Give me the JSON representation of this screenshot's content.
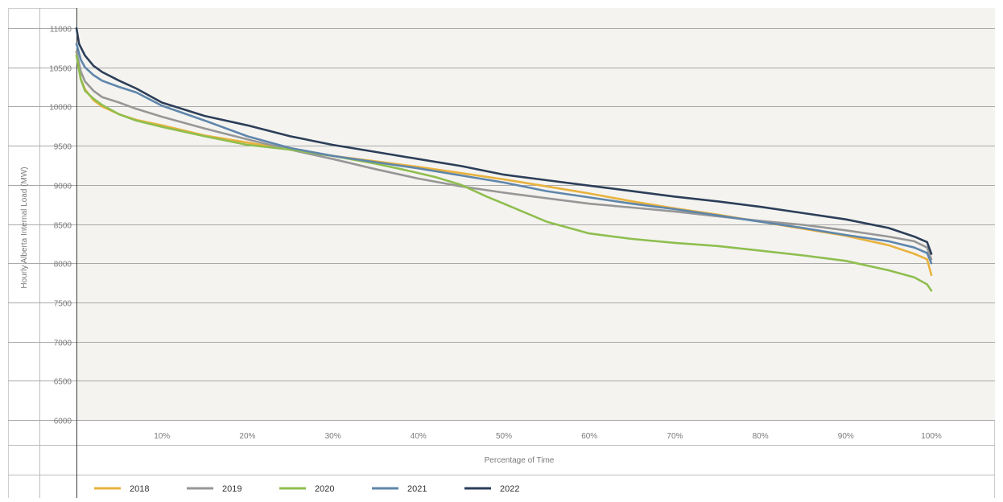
{
  "chart_data": {
    "type": "line",
    "title": "",
    "xlabel": "Percentage of Time",
    "ylabel": "Hourly Alberta Internal Load (MW)",
    "xlim": [
      0,
      100
    ],
    "ylim": [
      6000,
      11000
    ],
    "xticks": [
      10,
      20,
      30,
      40,
      50,
      60,
      70,
      80,
      90,
      100
    ],
    "xtick_labels": [
      "10%",
      "20%",
      "30%",
      "40%",
      "50%",
      "60%",
      "70%",
      "80%",
      "90%",
      "100%"
    ],
    "yticks": [
      6000,
      6500,
      7000,
      7500,
      8000,
      8500,
      9000,
      9500,
      10000,
      10500,
      11000
    ],
    "ytick_labels": [
      "6000",
      "6500",
      "7000",
      "7500",
      "8000",
      "8500",
      "9000",
      "9500",
      "10000",
      "10500",
      "11000"
    ],
    "grid": true,
    "legend_position": "bottom",
    "series": [
      {
        "name": "2018",
        "color": "#e8b23e",
        "x": [
          0,
          0.5,
          1,
          2,
          3,
          5,
          7,
          10,
          15,
          20,
          25,
          30,
          35,
          40,
          45,
          50,
          55,
          60,
          65,
          70,
          75,
          80,
          85,
          90,
          95,
          98,
          99.5,
          100
        ],
        "y": [
          10700,
          10350,
          10220,
          10080,
          10000,
          9900,
          9830,
          9760,
          9630,
          9540,
          9450,
          9370,
          9300,
          9230,
          9150,
          9070,
          8980,
          8890,
          8790,
          8700,
          8620,
          8530,
          8440,
          8350,
          8230,
          8120,
          8050,
          7850
        ]
      },
      {
        "name": "2019",
        "color": "#979797",
        "x": [
          0,
          0.5,
          1,
          2,
          3,
          5,
          7,
          10,
          15,
          20,
          25,
          30,
          35,
          40,
          45,
          50,
          55,
          60,
          65,
          70,
          75,
          80,
          85,
          90,
          95,
          98,
          99.5,
          100
        ],
        "y": [
          10700,
          10450,
          10320,
          10200,
          10120,
          10050,
          9970,
          9870,
          9720,
          9580,
          9450,
          9330,
          9200,
          9080,
          8980,
          8900,
          8830,
          8760,
          8710,
          8660,
          8600,
          8540,
          8490,
          8420,
          8340,
          8280,
          8200,
          8050
        ]
      },
      {
        "name": "2020",
        "color": "#8fbe4f",
        "x": [
          0,
          0.5,
          1,
          2,
          3,
          5,
          7,
          10,
          15,
          20,
          25,
          30,
          35,
          38,
          42,
          45,
          48,
          50,
          55,
          60,
          65,
          70,
          75,
          80,
          85,
          90,
          95,
          98,
          99.5,
          100
        ],
        "y": [
          10650,
          10350,
          10200,
          10100,
          10020,
          9900,
          9820,
          9740,
          9620,
          9510,
          9450,
          9370,
          9270,
          9200,
          9100,
          9000,
          8850,
          8760,
          8530,
          8380,
          8310,
          8260,
          8220,
          8160,
          8100,
          8030,
          7910,
          7820,
          7730,
          7650
        ]
      },
      {
        "name": "2021",
        "color": "#5f86ab",
        "x": [
          0,
          0.5,
          1,
          2,
          3,
          5,
          7,
          10,
          15,
          20,
          25,
          30,
          35,
          40,
          45,
          50,
          55,
          60,
          65,
          70,
          75,
          80,
          85,
          90,
          95,
          98,
          99.5,
          100
        ],
        "y": [
          10800,
          10600,
          10500,
          10400,
          10330,
          10250,
          10180,
          10010,
          9820,
          9620,
          9470,
          9370,
          9290,
          9210,
          9120,
          9030,
          8920,
          8840,
          8760,
          8690,
          8610,
          8530,
          8450,
          8360,
          8280,
          8200,
          8130,
          8000
        ]
      },
      {
        "name": "2022",
        "color": "#2c3e58",
        "x": [
          0,
          0.3,
          1,
          2,
          3,
          5,
          7,
          10,
          15,
          20,
          25,
          30,
          35,
          40,
          45,
          50,
          55,
          60,
          65,
          70,
          75,
          80,
          85,
          90,
          95,
          98,
          99.5,
          100
        ],
        "y": [
          11000,
          10800,
          10650,
          10520,
          10440,
          10330,
          10230,
          10050,
          9880,
          9760,
          9620,
          9510,
          9420,
          9330,
          9240,
          9130,
          9060,
          8990,
          8920,
          8850,
          8790,
          8720,
          8640,
          8560,
          8450,
          8340,
          8270,
          8120
        ]
      }
    ]
  }
}
